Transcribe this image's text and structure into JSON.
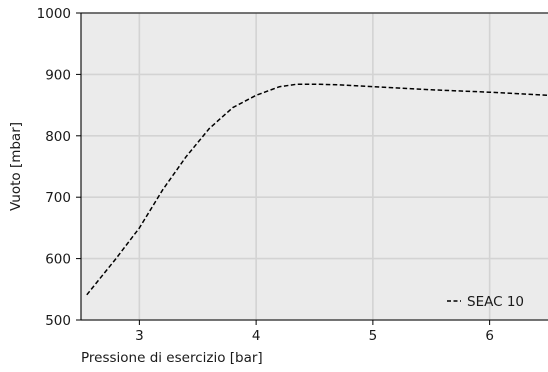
{
  "chart_data": {
    "type": "line",
    "title": "",
    "xlabel": "Pressione di esercizio [bar]",
    "ylabel": "Vuoto [mbar]",
    "xlim": [
      2.5,
      6.5
    ],
    "ylim": [
      500,
      1000
    ],
    "xticks": [
      3,
      4,
      5,
      6
    ],
    "xtick_labels": [
      "3",
      "4",
      "5",
      "6"
    ],
    "yticks": [
      500,
      600,
      700,
      800,
      900,
      1000
    ],
    "ytick_labels": [
      "500",
      "600",
      "700",
      "800",
      "900",
      "1000"
    ],
    "grid": true,
    "legend_position": "bottom-right",
    "background_color": "#ebebeb",
    "grid_color": "#d3d3d3",
    "series": [
      {
        "name": "SEAC 10",
        "style": "dashed",
        "color": "#000000",
        "x": [
          2.55,
          2.8,
          3.0,
          3.2,
          3.4,
          3.6,
          3.8,
          4.0,
          4.2,
          4.35,
          4.5,
          4.7,
          5.0,
          5.5,
          6.0,
          6.5
        ],
        "y": [
          541,
          600,
          650,
          712,
          766,
          812,
          846,
          866,
          880,
          884,
          884,
          883,
          880,
          875,
          871,
          866
        ]
      }
    ]
  }
}
